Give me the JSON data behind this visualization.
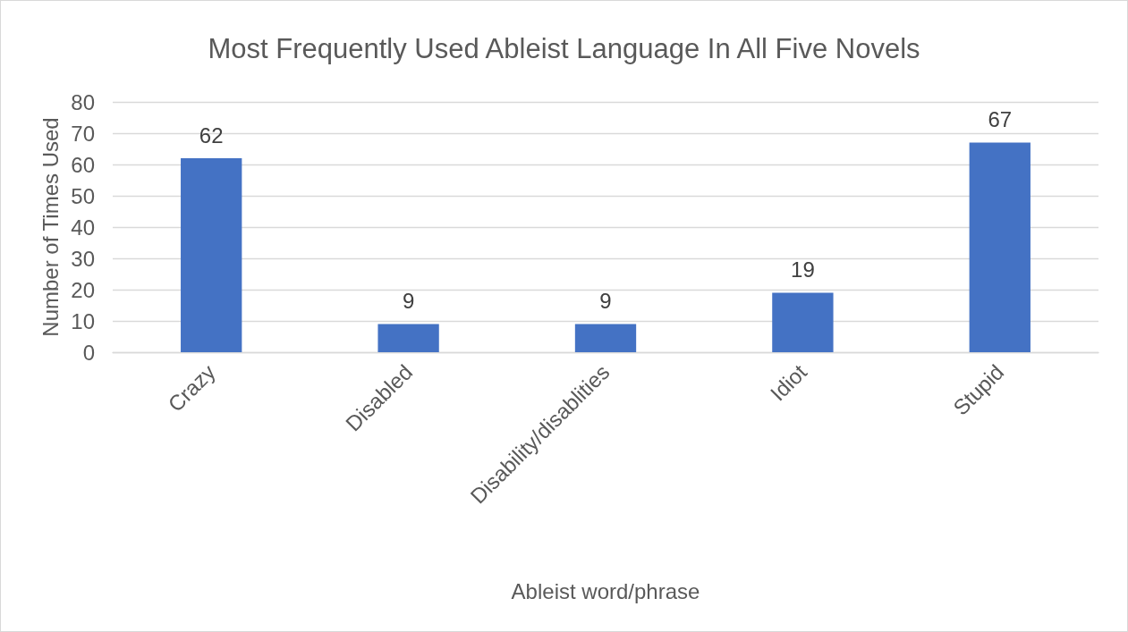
{
  "chart_data": {
    "type": "bar",
    "title": "Most Frequently Used Ableist Language In All Five Novels",
    "xlabel": "Ableist word/phrase",
    "ylabel": "Number of Times Used",
    "categories": [
      "Crazy",
      "Disabled",
      "Disability/disablities",
      "Idiot",
      "Stupid"
    ],
    "values": [
      62,
      9,
      9,
      19,
      67
    ],
    "color": "#4472c4",
    "ylim": [
      0,
      80
    ],
    "yticks": [
      0,
      10,
      20,
      30,
      40,
      50,
      60,
      70,
      80
    ],
    "grid": "y",
    "data_labels": true
  }
}
